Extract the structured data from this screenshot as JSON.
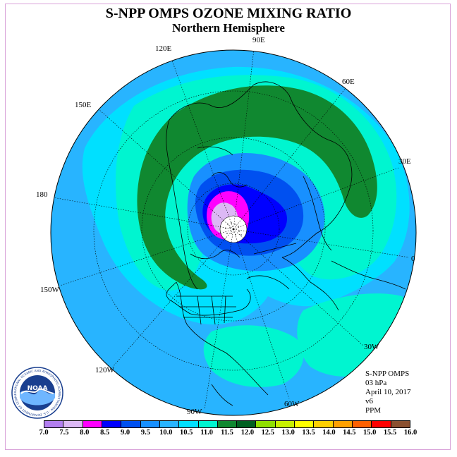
{
  "title": "S-NPP OMPS OZONE MIXING RATIO",
  "subtitle": "Northern Hemisphere",
  "longitude_labels": {
    "e90": "90E",
    "e120": "120E",
    "e60": "60E",
    "e150": "150E",
    "e30": "30E",
    "e180": "180",
    "e0": "0",
    "w150": "150W",
    "w30": "30W",
    "w120": "120W",
    "w60": "60W",
    "w90": "90W"
  },
  "info": {
    "instrument": "S-NPP OMPS",
    "level": "03 hPa",
    "date": "April 10, 2017",
    "version": "v6",
    "units": "PPM"
  },
  "logo": {
    "name": "NOAA",
    "ring_text": "NATIONAL OCEANIC AND ATMOSPHERIC ADMINISTRATION · U.S. DEPARTMENT OF COMMERCE"
  },
  "colors": {
    "frame": "#d9a3d9",
    "land_outline": "#000000",
    "graticule": "#000000"
  },
  "legend": {
    "ticks": [
      "7.0",
      "7.5",
      "8.0",
      "8.5",
      "9.0",
      "9.5",
      "10.0",
      "10.5",
      "11.0",
      "11.5",
      "12.0",
      "12.5",
      "13.0",
      "13.5",
      "14.0",
      "14.5",
      "15.0",
      "15.5",
      "16.0"
    ],
    "colors": [
      "#b37ff0",
      "#dcb8f5",
      "#ff00ff",
      "#0000ff",
      "#0050f0",
      "#1890ff",
      "#28b4ff",
      "#00e0ff",
      "#00f5d0",
      "#108830",
      "#006020",
      "#90e000",
      "#c8f000",
      "#ffff00",
      "#ffd000",
      "#ffa000",
      "#ff6000",
      "#ff0000",
      "#8b5030"
    ]
  }
}
